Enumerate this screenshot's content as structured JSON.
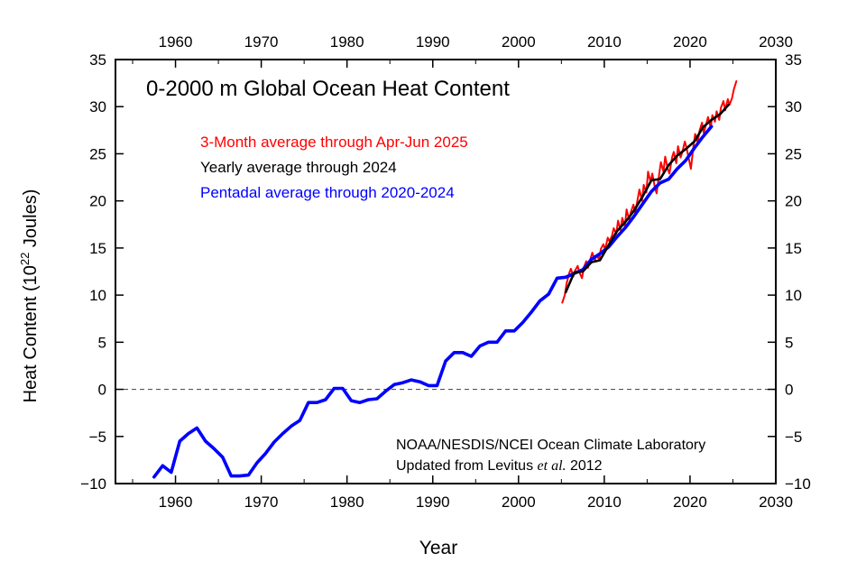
{
  "chart_data": {
    "type": "line",
    "title": "0-2000 m Global Ocean Heat Content",
    "xlabel": "Year",
    "ylabel_main": "Heat Content (10",
    "ylabel_exp": "22",
    "ylabel_unit": " Joules)",
    "xlim": [
      1953,
      2030
    ],
    "ylim": [
      -10,
      35
    ],
    "x_ticks": [
      1960,
      1970,
      1980,
      1990,
      2000,
      2010,
      2020,
      2030
    ],
    "y_ticks": [
      -10,
      -5,
      0,
      5,
      10,
      15,
      20,
      25,
      30,
      35
    ],
    "zero_line": true,
    "legend_placement": "top-left",
    "credit": {
      "line1": "NOAA/NESDIS/NCEI Ocean Climate Laboratory",
      "line2_pre": "Updated from Levitus ",
      "line2_italic": "et al.",
      "line2_post": " 2012"
    },
    "colors": {
      "three_month": "#ff0000",
      "yearly": "#000000",
      "pentadal": "#0000ff",
      "axis": "#000000",
      "zero_line": "#555555"
    },
    "series": [
      {
        "name": "3-Month average through Apr-Jun 2025",
        "color": "#ff0000",
        "x": [
          2005.1,
          2005.4,
          2005.6,
          2005.9,
          2006.1,
          2006.4,
          2006.6,
          2006.9,
          2007.1,
          2007.4,
          2007.6,
          2007.9,
          2008.1,
          2008.4,
          2008.6,
          2008.9,
          2009.1,
          2009.4,
          2009.6,
          2009.9,
          2010.1,
          2010.4,
          2010.6,
          2010.9,
          2011.1,
          2011.4,
          2011.6,
          2011.9,
          2012.1,
          2012.4,
          2012.6,
          2012.9,
          2013.1,
          2013.4,
          2013.6,
          2013.9,
          2014.1,
          2014.4,
          2014.6,
          2014.9,
          2015.1,
          2015.4,
          2015.6,
          2015.9,
          2016.1,
          2016.4,
          2016.6,
          2016.9,
          2017.1,
          2017.4,
          2017.6,
          2017.9,
          2018.1,
          2018.4,
          2018.6,
          2018.9,
          2019.1,
          2019.4,
          2019.6,
          2019.9,
          2020.1,
          2020.4,
          2020.6,
          2020.9,
          2021.1,
          2021.4,
          2021.6,
          2021.9,
          2022.1,
          2022.4,
          2022.6,
          2022.9,
          2023.1,
          2023.4,
          2023.6,
          2023.9,
          2024.1,
          2024.4,
          2024.6,
          2024.9,
          2025.1,
          2025.4
        ],
        "values": [
          9.2,
          10.0,
          11.2,
          12.3,
          12.8,
          12.0,
          12.6,
          13.1,
          12.4,
          11.8,
          12.9,
          13.6,
          12.9,
          13.9,
          14.5,
          13.7,
          14.2,
          13.8,
          14.9,
          15.4,
          14.8,
          16.1,
          15.7,
          16.3,
          17.1,
          16.5,
          17.9,
          16.9,
          18.2,
          17.3,
          19.1,
          18.0,
          18.8,
          19.6,
          18.7,
          20.2,
          21.2,
          20.0,
          21.7,
          20.9,
          23.1,
          22.0,
          22.9,
          21.4,
          20.8,
          22.8,
          24.1,
          23.1,
          24.7,
          23.4,
          22.9,
          24.6,
          25.2,
          24.0,
          25.8,
          24.6,
          25.2,
          26.3,
          25.6,
          24.3,
          23.4,
          25.8,
          27.1,
          26.2,
          27.4,
          28.3,
          27.2,
          28.2,
          28.9,
          27.8,
          29.1,
          28.4,
          29.5,
          28.6,
          29.9,
          30.6,
          29.6,
          30.8,
          30.2,
          30.9,
          31.8,
          32.7
        ]
      },
      {
        "name": "Yearly average through 2024",
        "color": "#000000",
        "x": [
          2005.5,
          2006.5,
          2007.5,
          2008.5,
          2009.5,
          2010.5,
          2011.5,
          2012.5,
          2013.5,
          2014.5,
          2015.5,
          2016.5,
          2017.5,
          2018.5,
          2019.5,
          2020.5,
          2021.5,
          2022.5,
          2023.5,
          2024.5
        ],
        "values": [
          10.3,
          12.4,
          12.5,
          13.5,
          13.7,
          15.3,
          16.8,
          17.8,
          19.0,
          20.5,
          22.2,
          22.3,
          23.8,
          24.8,
          25.5,
          26.3,
          27.8,
          28.6,
          29.2,
          30.2
        ]
      },
      {
        "name": "Pentadal average through 2020-2024",
        "color": "#0000ff",
        "x": [
          1957.5,
          1958.5,
          1959.5,
          1960.5,
          1961.5,
          1962.5,
          1963.5,
          1964.5,
          1965.5,
          1966.5,
          1967.5,
          1968.5,
          1969.5,
          1970.5,
          1971.5,
          1972.5,
          1973.5,
          1974.5,
          1975.5,
          1976.5,
          1977.5,
          1978.5,
          1979.5,
          1980.5,
          1981.5,
          1982.5,
          1983.5,
          1984.5,
          1985.5,
          1986.5,
          1987.5,
          1988.5,
          1989.5,
          1990.5,
          1991.5,
          1992.5,
          1993.5,
          1994.5,
          1995.5,
          1996.5,
          1997.5,
          1998.5,
          1999.5,
          2000.5,
          2001.5,
          2002.5,
          2003.5,
          2004.5,
          2005.5,
          2006.5,
          2007.5,
          2008.5,
          2009.5,
          2010.5,
          2011.5,
          2012.5,
          2013.5,
          2014.5,
          2015.5,
          2016.5,
          2017.5,
          2018.5,
          2019.5,
          2020.5,
          2021.5,
          2022.5
        ],
        "values": [
          -9.3,
          -8.1,
          -8.8,
          -5.5,
          -4.7,
          -4.1,
          -5.5,
          -6.3,
          -7.2,
          -9.2,
          -9.2,
          -9.1,
          -7.8,
          -6.8,
          -5.6,
          -4.7,
          -3.9,
          -3.3,
          -1.4,
          -1.4,
          -1.1,
          0.1,
          0.1,
          -1.2,
          -1.4,
          -1.1,
          -1.0,
          -0.2,
          0.5,
          0.7,
          1.0,
          0.8,
          0.4,
          0.4,
          3.0,
          3.9,
          3.9,
          3.5,
          4.6,
          5.0,
          5.0,
          6.2,
          6.2,
          7.1,
          8.2,
          9.4,
          10.1,
          11.8,
          11.9,
          12.3,
          12.7,
          13.8,
          14.4,
          15.1,
          16.2,
          17.2,
          18.4,
          19.7,
          21.0,
          21.9,
          22.3,
          23.4,
          24.3,
          25.6,
          26.8,
          27.9
        ]
      }
    ]
  }
}
